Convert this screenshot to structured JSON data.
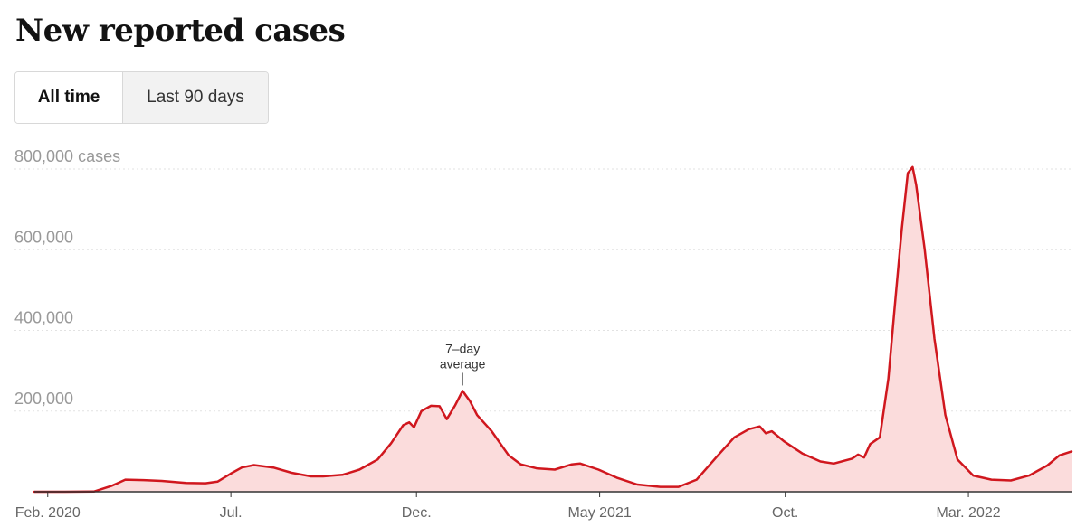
{
  "header": {
    "title": "New reported cases"
  },
  "toggle": {
    "options": [
      {
        "label": "All time",
        "selected": true
      },
      {
        "label": "Last 90 days",
        "selected": false
      }
    ]
  },
  "colors": {
    "line": "#d0171e",
    "area": "#fbdcdc",
    "grid": "#e2e2e2",
    "axis": "#333333"
  },
  "chart_data": {
    "type": "area",
    "title": "New reported cases",
    "series": [
      {
        "name": "7-day average",
        "points": [
          [
            "2020-01-21",
            0
          ],
          [
            "2020-02-15",
            0
          ],
          [
            "2020-03-10",
            500
          ],
          [
            "2020-03-25",
            15000
          ],
          [
            "2020-04-05",
            30000
          ],
          [
            "2020-04-20",
            29000
          ],
          [
            "2020-05-05",
            27000
          ],
          [
            "2020-05-25",
            22000
          ],
          [
            "2020-06-10",
            21000
          ],
          [
            "2020-06-20",
            25000
          ],
          [
            "2020-07-01",
            45000
          ],
          [
            "2020-07-10",
            60000
          ],
          [
            "2020-07-20",
            66000
          ],
          [
            "2020-08-05",
            60000
          ],
          [
            "2020-08-20",
            47000
          ],
          [
            "2020-09-05",
            38000
          ],
          [
            "2020-09-15",
            38000
          ],
          [
            "2020-10-01",
            42000
          ],
          [
            "2020-10-15",
            55000
          ],
          [
            "2020-10-30",
            80000
          ],
          [
            "2020-11-10",
            120000
          ],
          [
            "2020-11-20",
            165000
          ],
          [
            "2020-11-25",
            172000
          ],
          [
            "2020-11-29",
            160000
          ],
          [
            "2020-12-05",
            200000
          ],
          [
            "2020-12-13",
            213000
          ],
          [
            "2020-12-20",
            212000
          ],
          [
            "2020-12-26",
            180000
          ],
          [
            "2021-01-02",
            215000
          ],
          [
            "2021-01-08",
            250000
          ],
          [
            "2021-01-14",
            225000
          ],
          [
            "2021-01-20",
            190000
          ],
          [
            "2021-02-01",
            150000
          ],
          [
            "2021-02-15",
            90000
          ],
          [
            "2021-02-25",
            68000
          ],
          [
            "2021-03-10",
            58000
          ],
          [
            "2021-03-25",
            55000
          ],
          [
            "2021-04-08",
            68000
          ],
          [
            "2021-04-15",
            70000
          ],
          [
            "2021-04-30",
            55000
          ],
          [
            "2021-05-15",
            35000
          ],
          [
            "2021-06-01",
            18000
          ],
          [
            "2021-06-20",
            12000
          ],
          [
            "2021-07-05",
            12000
          ],
          [
            "2021-07-20",
            30000
          ],
          [
            "2021-08-05",
            85000
          ],
          [
            "2021-08-20",
            135000
          ],
          [
            "2021-09-01",
            155000
          ],
          [
            "2021-09-10",
            162000
          ],
          [
            "2021-09-15",
            145000
          ],
          [
            "2021-09-20",
            150000
          ],
          [
            "2021-09-30",
            125000
          ],
          [
            "2021-10-15",
            95000
          ],
          [
            "2021-10-30",
            75000
          ],
          [
            "2021-11-10",
            70000
          ],
          [
            "2021-11-25",
            82000
          ],
          [
            "2021-11-30",
            92000
          ],
          [
            "2021-12-05",
            85000
          ],
          [
            "2021-12-10",
            118000
          ],
          [
            "2021-12-18",
            135000
          ],
          [
            "2021-12-25",
            280000
          ],
          [
            "2021-12-30",
            450000
          ],
          [
            "2022-01-05",
            650000
          ],
          [
            "2022-01-10",
            790000
          ],
          [
            "2022-01-14",
            805000
          ],
          [
            "2022-01-17",
            760000
          ],
          [
            "2022-01-24",
            600000
          ],
          [
            "2022-02-01",
            380000
          ],
          [
            "2022-02-10",
            190000
          ],
          [
            "2022-02-20",
            80000
          ],
          [
            "2022-03-05",
            40000
          ],
          [
            "2022-03-20",
            30000
          ],
          [
            "2022-04-05",
            28000
          ],
          [
            "2022-04-20",
            40000
          ],
          [
            "2022-05-05",
            65000
          ],
          [
            "2022-05-15",
            90000
          ],
          [
            "2022-05-25",
            100000
          ]
        ]
      }
    ],
    "xlim": [
      "2020-01-21",
      "2022-05-25"
    ],
    "ylim": [
      0,
      800000
    ],
    "yticks": [
      {
        "value": 200000,
        "label": "200,000"
      },
      {
        "value": 400000,
        "label": "400,000"
      },
      {
        "value": 600000,
        "label": "600,000"
      },
      {
        "value": 800000,
        "label": "800,000 cases"
      }
    ],
    "xticks": [
      {
        "date": "2020-02-01",
        "label": "Feb. 2020"
      },
      {
        "date": "2020-07-01",
        "label": "Jul."
      },
      {
        "date": "2020-12-01",
        "label": "Dec."
      },
      {
        "date": "2021-05-01",
        "label": "May 2021"
      },
      {
        "date": "2021-10-01",
        "label": "Oct."
      },
      {
        "date": "2022-03-01",
        "label": "Mar. 2022"
      }
    ],
    "annotation": {
      "line1": "7–day",
      "line2": "average",
      "date": "2021-01-08",
      "value": 250000
    },
    "grid": true,
    "legend": "none"
  }
}
